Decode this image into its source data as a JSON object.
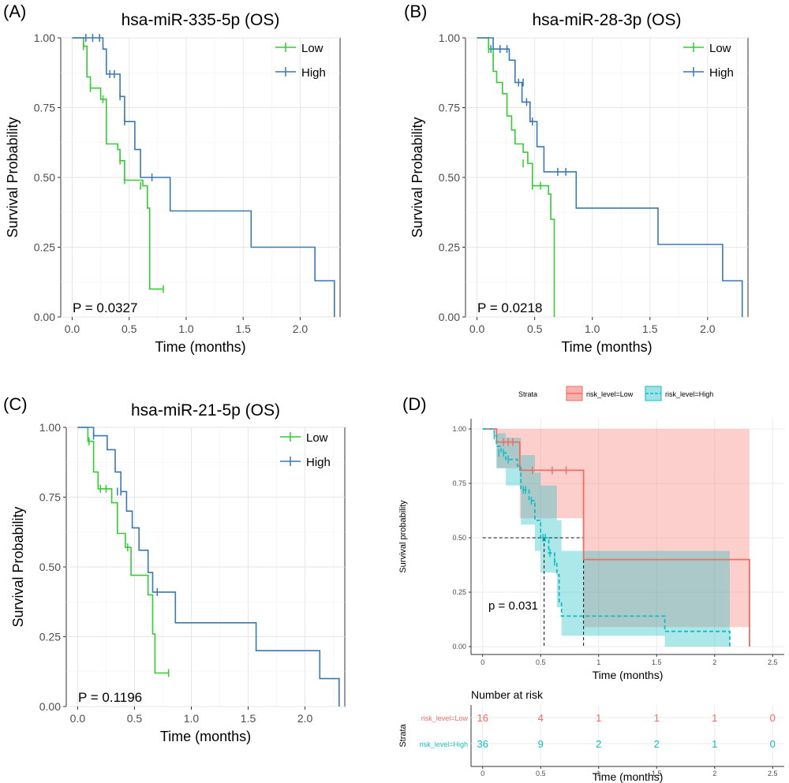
{
  "chart_data": [
    {
      "type": "line",
      "panel": "(A)",
      "title": "hsa-miR-335-5p (OS)",
      "xlabel": "Time (months)",
      "ylabel": "Survival Probability",
      "xlim": [
        0,
        2.3
      ],
      "ylim": [
        0,
        1
      ],
      "xticks": [
        "0.0",
        "0.5",
        "1.0",
        "1.5",
        "2.0"
      ],
      "yticks": [
        "0.00",
        "0.25",
        "0.50",
        "0.75",
        "1.00"
      ],
      "legend": "top-right",
      "grid": true,
      "pvalue": "P = 0.0327",
      "series": [
        {
          "name": "Low",
          "color": "#33cc33",
          "steps": [
            [
              0,
              1.0
            ],
            [
              0.1,
              0.97
            ],
            [
              0.13,
              0.86
            ],
            [
              0.16,
              0.82
            ],
            [
              0.25,
              0.78
            ],
            [
              0.3,
              0.62
            ],
            [
              0.4,
              0.6
            ],
            [
              0.42,
              0.56
            ],
            [
              0.46,
              0.49
            ],
            [
              0.62,
              0.47
            ],
            [
              0.66,
              0.39
            ],
            [
              0.68,
              0.1
            ],
            [
              0.8,
              0.1
            ]
          ],
          "censor": [
            [
              0.1,
              0.97
            ],
            [
              0.16,
              0.82
            ],
            [
              0.27,
              0.78
            ],
            [
              0.42,
              0.56
            ],
            [
              0.46,
              0.49
            ],
            [
              0.6,
              0.47
            ],
            [
              0.8,
              0.1
            ]
          ]
        },
        {
          "name": "High",
          "color": "#3a78b5",
          "steps": [
            [
              0,
              1.0
            ],
            [
              0.27,
              0.96
            ],
            [
              0.3,
              0.87
            ],
            [
              0.42,
              0.79
            ],
            [
              0.46,
              0.7
            ],
            [
              0.55,
              0.6
            ],
            [
              0.6,
              0.5
            ],
            [
              0.86,
              0.38
            ],
            [
              1.57,
              0.25
            ],
            [
              2.13,
              0.13
            ],
            [
              2.3,
              0.0
            ]
          ],
          "censor": [
            [
              0.12,
              1.0
            ],
            [
              0.18,
              1.0
            ],
            [
              0.24,
              1.0
            ],
            [
              0.33,
              0.87
            ],
            [
              0.37,
              0.87
            ],
            [
              0.42,
              0.79
            ],
            [
              0.46,
              0.7
            ],
            [
              0.7,
              0.5
            ]
          ]
        }
      ]
    },
    {
      "type": "line",
      "panel": "(B)",
      "title": "hsa-miR-28-3p (OS)",
      "xlabel": "Time (months)",
      "ylabel": "Survival Probability",
      "xlim": [
        0,
        2.3
      ],
      "ylim": [
        0,
        1
      ],
      "xticks": [
        "0.0",
        "0.5",
        "1.0",
        "1.5",
        "2.0"
      ],
      "yticks": [
        "0.00",
        "0.25",
        "0.50",
        "0.75",
        "1.00"
      ],
      "legend": "top-right",
      "grid": true,
      "pvalue": "P = 0.0218",
      "series": [
        {
          "name": "Low",
          "color": "#33cc33",
          "steps": [
            [
              0,
              1.0
            ],
            [
              0.1,
              0.96
            ],
            [
              0.14,
              0.88
            ],
            [
              0.17,
              0.84
            ],
            [
              0.22,
              0.8
            ],
            [
              0.26,
              0.72
            ],
            [
              0.3,
              0.67
            ],
            [
              0.33,
              0.62
            ],
            [
              0.4,
              0.59
            ],
            [
              0.44,
              0.55
            ],
            [
              0.48,
              0.47
            ],
            [
              0.62,
              0.44
            ],
            [
              0.64,
              0.35
            ],
            [
              0.67,
              0.0
            ]
          ],
          "censor": [
            [
              0.1,
              0.96
            ],
            [
              0.4,
              0.55
            ],
            [
              0.48,
              0.47
            ],
            [
              0.55,
              0.47
            ]
          ]
        },
        {
          "name": "High",
          "color": "#3a78b5",
          "steps": [
            [
              0,
              1.0
            ],
            [
              0.14,
              0.96
            ],
            [
              0.28,
              0.92
            ],
            [
              0.33,
              0.84
            ],
            [
              0.39,
              0.77
            ],
            [
              0.46,
              0.7
            ],
            [
              0.52,
              0.61
            ],
            [
              0.58,
              0.52
            ],
            [
              0.86,
              0.39
            ],
            [
              1.57,
              0.26
            ],
            [
              2.13,
              0.13
            ],
            [
              2.3,
              0.0
            ]
          ],
          "censor": [
            [
              0.12,
              0.96
            ],
            [
              0.2,
              0.96
            ],
            [
              0.26,
              0.96
            ],
            [
              0.36,
              0.84
            ],
            [
              0.4,
              0.84
            ],
            [
              0.43,
              0.77
            ],
            [
              0.48,
              0.7
            ],
            [
              0.7,
              0.52
            ],
            [
              0.77,
              0.52
            ]
          ]
        }
      ]
    },
    {
      "type": "line",
      "panel": "(C)",
      "title": "hsa-miR-21-5p (OS)",
      "xlabel": "Time (months)",
      "ylabel": "Survival Probability",
      "xlim": [
        0,
        2.3
      ],
      "ylim": [
        0,
        1
      ],
      "xticks": [
        "0.0",
        "0.5",
        "1.0",
        "1.5",
        "2.0"
      ],
      "yticks": [
        "0.00",
        "0.25",
        "0.50",
        "0.75",
        "1.00"
      ],
      "legend": "top-right",
      "grid": true,
      "pvalue": "P = 0.1196",
      "series": [
        {
          "name": "Low",
          "color": "#33cc33",
          "steps": [
            [
              0,
              1.0
            ],
            [
              0.09,
              0.95
            ],
            [
              0.14,
              0.84
            ],
            [
              0.18,
              0.78
            ],
            [
              0.3,
              0.73
            ],
            [
              0.35,
              0.62
            ],
            [
              0.42,
              0.57
            ],
            [
              0.47,
              0.47
            ],
            [
              0.62,
              0.4
            ],
            [
              0.66,
              0.26
            ],
            [
              0.68,
              0.12
            ],
            [
              0.8,
              0.12
            ]
          ],
          "censor": [
            [
              0.1,
              0.95
            ],
            [
              0.2,
              0.78
            ],
            [
              0.25,
              0.78
            ],
            [
              0.44,
              0.57
            ],
            [
              0.8,
              0.12
            ]
          ]
        },
        {
          "name": "High",
          "color": "#3a78b5",
          "steps": [
            [
              0,
              1.0
            ],
            [
              0.14,
              0.97
            ],
            [
              0.26,
              0.92
            ],
            [
              0.33,
              0.84
            ],
            [
              0.38,
              0.77
            ],
            [
              0.43,
              0.7
            ],
            [
              0.48,
              0.64
            ],
            [
              0.54,
              0.56
            ],
            [
              0.62,
              0.48
            ],
            [
              0.66,
              0.41
            ],
            [
              0.86,
              0.3
            ],
            [
              1.57,
              0.2
            ],
            [
              2.13,
              0.1
            ],
            [
              2.3,
              0.0
            ]
          ],
          "censor": [
            [
              0.14,
              0.97
            ],
            [
              0.35,
              0.77
            ],
            [
              0.38,
              0.77
            ],
            [
              0.7,
              0.41
            ]
          ]
        }
      ]
    },
    {
      "type": "line",
      "panel": "(D)",
      "title": "",
      "xlabel": "Time (months)",
      "ylabel": "Survival probability",
      "xlim": [
        0,
        2.5
      ],
      "ylim": [
        0,
        1
      ],
      "xticks": [
        "0",
        "0.5",
        "1",
        "1.5",
        "2",
        "2.5"
      ],
      "yticks": [
        "0.00",
        "0.25",
        "0.50",
        "0.75",
        "1.00"
      ],
      "legend": "top",
      "legend_title": "Strata",
      "grid": true,
      "pvalue": "p = 0.031",
      "median_reference": {
        "y": 0.5,
        "median_high": 0.53,
        "median_low": 0.87
      },
      "series": [
        {
          "name": "risk_level=Low",
          "color": "#f26c64",
          "line": "solid",
          "steps": [
            [
              0,
              1.0
            ],
            [
              0.12,
              0.94
            ],
            [
              0.32,
              0.81
            ],
            [
              0.87,
              0.4
            ],
            [
              2.3,
              0.0
            ]
          ],
          "ci_upper": [
            [
              0,
              1.0
            ],
            [
              2.3,
              1.0
            ]
          ],
          "ci_lower": [
            [
              0,
              1.0
            ],
            [
              0.12,
              0.82
            ],
            [
              0.32,
              0.59
            ],
            [
              0.87,
              0.09
            ],
            [
              2.3,
              0.09
            ]
          ],
          "censor": [
            [
              0.18,
              0.94
            ],
            [
              0.22,
              0.94
            ],
            [
              0.26,
              0.94
            ],
            [
              0.43,
              0.81
            ],
            [
              0.6,
              0.81
            ],
            [
              0.72,
              0.81
            ]
          ]
        },
        {
          "name": "risk_level=High",
          "color": "#12bcc4",
          "line": "dashed",
          "steps": [
            [
              0,
              1.0
            ],
            [
              0.1,
              0.97
            ],
            [
              0.12,
              0.92
            ],
            [
              0.16,
              0.89
            ],
            [
              0.2,
              0.86
            ],
            [
              0.3,
              0.83
            ],
            [
              0.33,
              0.72
            ],
            [
              0.4,
              0.67
            ],
            [
              0.45,
              0.58
            ],
            [
              0.5,
              0.5
            ],
            [
              0.57,
              0.43
            ],
            [
              0.62,
              0.39
            ],
            [
              0.64,
              0.33
            ],
            [
              0.66,
              0.2
            ],
            [
              0.68,
              0.14
            ],
            [
              1.57,
              0.07
            ],
            [
              2.13,
              0.0
            ]
          ],
          "ci_upper": [
            [
              0,
              1.0
            ],
            [
              0.12,
              0.98
            ],
            [
              0.2,
              0.96
            ],
            [
              0.33,
              0.88
            ],
            [
              0.45,
              0.8
            ],
            [
              0.5,
              0.74
            ],
            [
              0.64,
              0.58
            ],
            [
              0.68,
              0.44
            ],
            [
              2.13,
              0.44
            ]
          ],
          "ci_lower": [
            [
              0,
              1.0
            ],
            [
              0.12,
              0.82
            ],
            [
              0.2,
              0.74
            ],
            [
              0.33,
              0.56
            ],
            [
              0.45,
              0.44
            ],
            [
              0.5,
              0.34
            ],
            [
              0.64,
              0.18
            ],
            [
              0.68,
              0.05
            ],
            [
              1.57,
              0.0
            ],
            [
              2.13,
              0.0
            ]
          ],
          "censor": [
            [
              0.1,
              0.97
            ],
            [
              0.14,
              0.89
            ],
            [
              0.18,
              0.89
            ],
            [
              0.22,
              0.86
            ],
            [
              0.35,
              0.72
            ],
            [
              0.37,
              0.72
            ],
            [
              0.42,
              0.67
            ],
            [
              0.52,
              0.5
            ],
            [
              0.54,
              0.5
            ],
            [
              0.58,
              0.43
            ],
            [
              0.62,
              0.39
            ]
          ]
        }
      ]
    }
  ],
  "panel_d": {
    "legend_title": "Strata",
    "legend_low": "risk_level=Low",
    "legend_high": "risk_level=High",
    "risk_table": {
      "title": "Number at risk",
      "ylabel": "Strata",
      "xlabel": "Time (months)",
      "xticks": [
        "0",
        "0.5",
        "1",
        "1.5",
        "2",
        "2.5"
      ],
      "rows": [
        {
          "label": "risk_level=Low",
          "color": "#f26c64",
          "values": [
            "16",
            "4",
            "1",
            "1",
            "1",
            "0"
          ]
        },
        {
          "label": "risk_level=High",
          "color": "#12bcc4",
          "values": [
            "36",
            "9",
            "2",
            "2",
            "1",
            "0"
          ]
        }
      ]
    }
  }
}
